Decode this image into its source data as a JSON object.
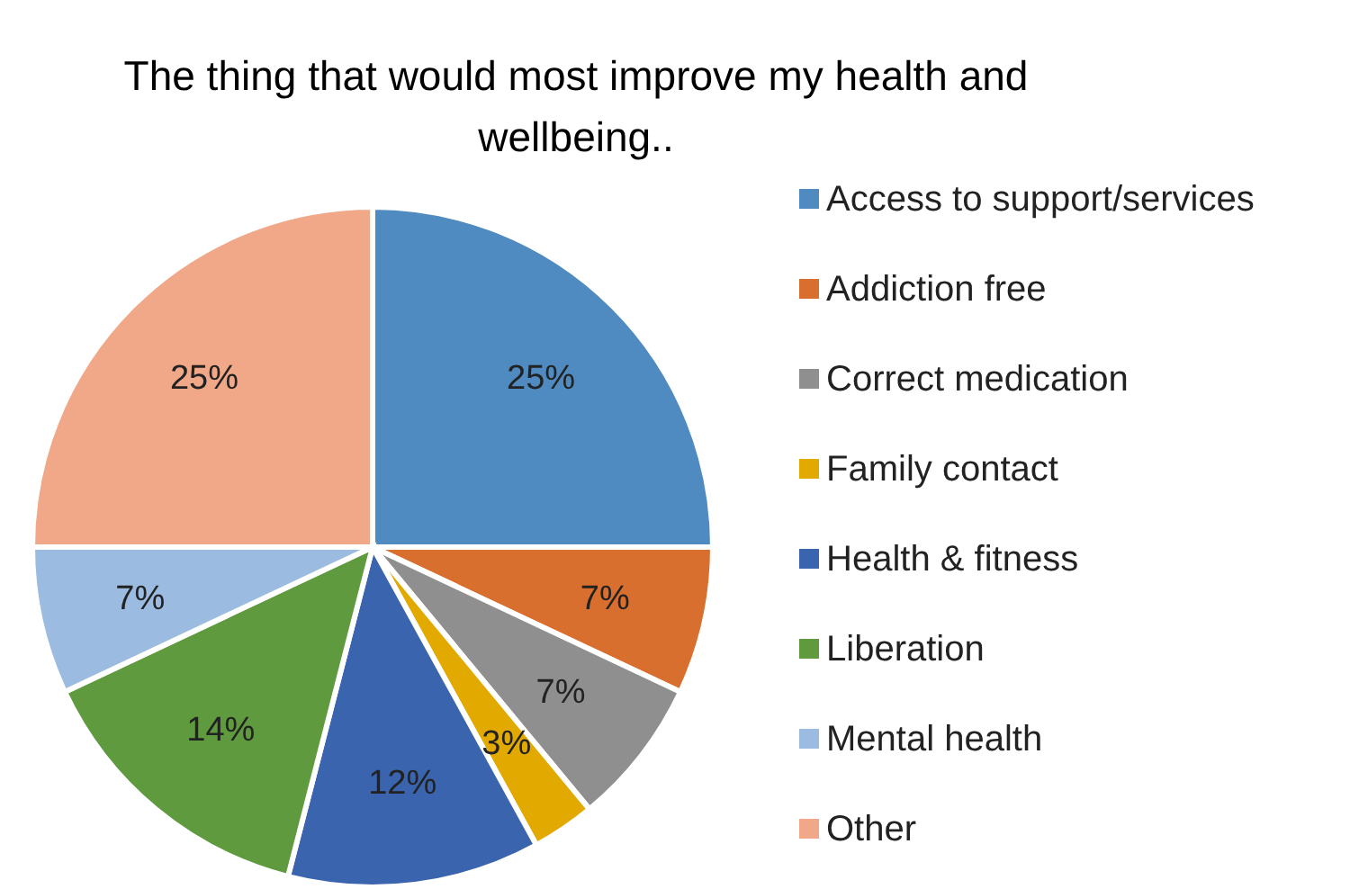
{
  "chart_data": {
    "type": "pie",
    "title": "The thing that would most improve my health and wellbeing..",
    "categories": [
      "Access to support/services",
      "Addiction free",
      "Correct medication",
      "Family contact",
      "Health & fitness",
      "Liberation",
      "Mental health",
      "Other"
    ],
    "values": [
      25,
      7,
      7,
      3,
      12,
      14,
      7,
      25
    ],
    "colors": [
      "#4f8bc0",
      "#d86f2f",
      "#8f8f8f",
      "#e2a900",
      "#3b64ae",
      "#5f9a3f",
      "#9bbbe0",
      "#f0a889"
    ],
    "value_labels": [
      "25%",
      "7%",
      "7%",
      "3%",
      "12%",
      "14%",
      "7%",
      "25%"
    ],
    "legend": "right"
  }
}
